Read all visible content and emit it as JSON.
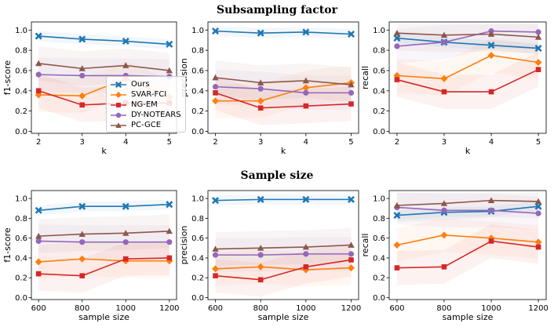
{
  "titles": {
    "row1": "Subsampling factor",
    "row2": "Sample size"
  },
  "series_meta": [
    {
      "name": "Ours",
      "color": "#1f77b4",
      "marker": "x"
    },
    {
      "name": "SVAR-FCI",
      "color": "#ff7f0e",
      "marker": "diamond"
    },
    {
      "name": "NG-EM",
      "color": "#d62728",
      "marker": "square"
    },
    {
      "name": "DY-NOTEARS",
      "color": "#9467bd",
      "marker": "circle"
    },
    {
      "name": "PC-GCE",
      "color": "#8c564b",
      "marker": "triangle"
    }
  ],
  "chart_data": [
    {
      "type": "line",
      "row": 1,
      "col": 1,
      "title": "",
      "xlabel": "k",
      "ylabel": "f1-score",
      "x": [
        2,
        3,
        4,
        5
      ],
      "xticks": [
        "2",
        "3",
        "4",
        "5"
      ],
      "ylim": [
        -0.02,
        1.08
      ],
      "yticks": [
        "0.0",
        "0.2",
        "0.4",
        "0.6",
        "0.8",
        "1.0"
      ],
      "legend": "center-left",
      "series": [
        {
          "name": "Ours",
          "values": [
            0.94,
            0.91,
            0.89,
            0.86
          ]
        },
        {
          "name": "SVAR-FCI",
          "values": [
            0.36,
            0.35,
            0.52,
            0.34
          ]
        },
        {
          "name": "NG-EM",
          "values": [
            0.4,
            0.26,
            0.28,
            0.28
          ]
        },
        {
          "name": "DY-NOTEARS",
          "values": [
            0.56,
            0.55,
            0.55,
            0.54
          ]
        },
        {
          "name": "PC-GCE",
          "values": [
            0.67,
            0.62,
            0.65,
            0.6
          ]
        }
      ]
    },
    {
      "type": "line",
      "row": 1,
      "col": 2,
      "title": "",
      "xlabel": "k",
      "ylabel": "precision",
      "x": [
        2,
        3,
        4,
        5
      ],
      "xticks": [
        "2",
        "3",
        "4",
        "5"
      ],
      "ylim": [
        -0.02,
        1.08
      ],
      "yticks": [
        "0.0",
        "0.2",
        "0.4",
        "0.6",
        "0.8",
        "1.0"
      ],
      "series": [
        {
          "name": "Ours",
          "values": [
            0.99,
            0.97,
            0.98,
            0.96
          ]
        },
        {
          "name": "SVAR-FCI",
          "values": [
            0.3,
            0.3,
            0.43,
            0.48
          ]
        },
        {
          "name": "NG-EM",
          "values": [
            0.38,
            0.23,
            0.25,
            0.27
          ]
        },
        {
          "name": "DY-NOTEARS",
          "values": [
            0.44,
            0.42,
            0.38,
            0.38
          ]
        },
        {
          "name": "PC-GCE",
          "values": [
            0.53,
            0.48,
            0.5,
            0.46
          ]
        }
      ]
    },
    {
      "type": "line",
      "row": 1,
      "col": 3,
      "title": "",
      "xlabel": "k",
      "ylabel": "recall",
      "x": [
        2,
        3,
        4,
        5
      ],
      "xticks": [
        "2",
        "3",
        "4",
        "5"
      ],
      "ylim": [
        -0.02,
        1.08
      ],
      "yticks": [
        "0.0",
        "0.2",
        "0.4",
        "0.6",
        "0.8",
        "1.0"
      ],
      "series": [
        {
          "name": "Ours",
          "values": [
            0.92,
            0.88,
            0.85,
            0.82
          ]
        },
        {
          "name": "SVAR-FCI",
          "values": [
            0.55,
            0.52,
            0.75,
            0.68
          ]
        },
        {
          "name": "NG-EM",
          "values": [
            0.51,
            0.39,
            0.39,
            0.61
          ]
        },
        {
          "name": "DY-NOTEARS",
          "values": [
            0.84,
            0.88,
            0.99,
            0.98
          ]
        },
        {
          "name": "PC-GCE",
          "values": [
            0.97,
            0.95,
            0.96,
            0.93
          ]
        }
      ]
    },
    {
      "type": "line",
      "row": 2,
      "col": 1,
      "title": "",
      "xlabel": "sample size",
      "ylabel": "f1-score",
      "x": [
        600,
        800,
        1000,
        1200
      ],
      "xticks": [
        "600",
        "800",
        "1000",
        "1200"
      ],
      "ylim": [
        -0.02,
        1.08
      ],
      "yticks": [
        "0.0",
        "0.2",
        "0.4",
        "0.6",
        "0.8",
        "1.0"
      ],
      "series": [
        {
          "name": "Ours",
          "values": [
            0.88,
            0.92,
            0.92,
            0.94
          ]
        },
        {
          "name": "SVAR-FCI",
          "values": [
            0.36,
            0.39,
            0.37,
            0.37
          ]
        },
        {
          "name": "NG-EM",
          "values": [
            0.24,
            0.22,
            0.39,
            0.4
          ]
        },
        {
          "name": "DY-NOTEARS",
          "values": [
            0.57,
            0.56,
            0.56,
            0.56
          ]
        },
        {
          "name": "PC-GCE",
          "values": [
            0.62,
            0.64,
            0.65,
            0.67
          ]
        }
      ]
    },
    {
      "type": "line",
      "row": 2,
      "col": 2,
      "title": "",
      "xlabel": "sample size",
      "ylabel": "precision",
      "x": [
        600,
        800,
        1000,
        1200
      ],
      "xticks": [
        "600",
        "800",
        "1000",
        "1200"
      ],
      "ylim": [
        -0.02,
        1.08
      ],
      "yticks": [
        "0.0",
        "0.2",
        "0.4",
        "0.6",
        "0.8",
        "1.0"
      ],
      "series": [
        {
          "name": "Ours",
          "values": [
            0.98,
            0.99,
            0.99,
            0.99
          ]
        },
        {
          "name": "SVAR-FCI",
          "values": [
            0.29,
            0.31,
            0.28,
            0.3
          ]
        },
        {
          "name": "NG-EM",
          "values": [
            0.22,
            0.18,
            0.31,
            0.38
          ]
        },
        {
          "name": "DY-NOTEARS",
          "values": [
            0.43,
            0.43,
            0.44,
            0.44
          ]
        },
        {
          "name": "PC-GCE",
          "values": [
            0.49,
            0.5,
            0.51,
            0.53
          ]
        }
      ]
    },
    {
      "type": "line",
      "row": 2,
      "col": 3,
      "title": "",
      "xlabel": "sample size",
      "ylabel": "recall",
      "x": [
        600,
        800,
        1000,
        1200
      ],
      "xticks": [
        "600",
        "800",
        "1000",
        "1200"
      ],
      "ylim": [
        -0.02,
        1.08
      ],
      "yticks": [
        "0.0",
        "0.2",
        "0.4",
        "0.6",
        "0.8",
        "1.0"
      ],
      "series": [
        {
          "name": "Ours",
          "values": [
            0.83,
            0.86,
            0.87,
            0.92
          ]
        },
        {
          "name": "SVAR-FCI",
          "values": [
            0.53,
            0.63,
            0.6,
            0.56
          ]
        },
        {
          "name": "NG-EM",
          "values": [
            0.3,
            0.31,
            0.57,
            0.51
          ]
        },
        {
          "name": "DY-NOTEARS",
          "values": [
            0.91,
            0.88,
            0.88,
            0.85
          ]
        },
        {
          "name": "PC-GCE",
          "values": [
            0.93,
            0.95,
            0.98,
            0.97
          ]
        }
      ]
    }
  ]
}
